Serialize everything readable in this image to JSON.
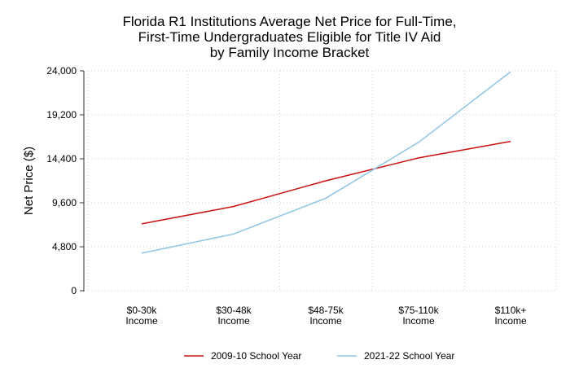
{
  "chart_data": {
    "type": "line",
    "title_lines": [
      "Florida R1 Institutions Average Net Price for Full-Time,",
      "First-Time Undergraduates Eligible for Title IV Aid",
      "by Family Income Bracket"
    ],
    "xlabel": "",
    "ylabel": "Net Price ($)",
    "categories": [
      [
        "$0-30k",
        "Income"
      ],
      [
        "$30-48k",
        "Income"
      ],
      [
        "$48-75k",
        "Income"
      ],
      [
        "$75-110k",
        "Income"
      ],
      [
        "$110k+",
        "Income"
      ]
    ],
    "ylim": [
      0,
      24000
    ],
    "yticks": [
      0,
      4800,
      9600,
      14400,
      19200,
      24000
    ],
    "ytick_labels": [
      "0",
      "4,800",
      "9,600",
      "14,400",
      "19,200",
      "24,000"
    ],
    "grid": true,
    "legend_position": "bottom",
    "series": [
      {
        "name": "2009-10 School Year",
        "color": "#cc1111",
        "values": [
          7300,
          9200,
          12000,
          14500,
          16300
        ]
      },
      {
        "name": "2021-22 School Year",
        "color": "#8ec4e4",
        "values": [
          4100,
          6200,
          10100,
          16200,
          23900
        ]
      }
    ]
  }
}
